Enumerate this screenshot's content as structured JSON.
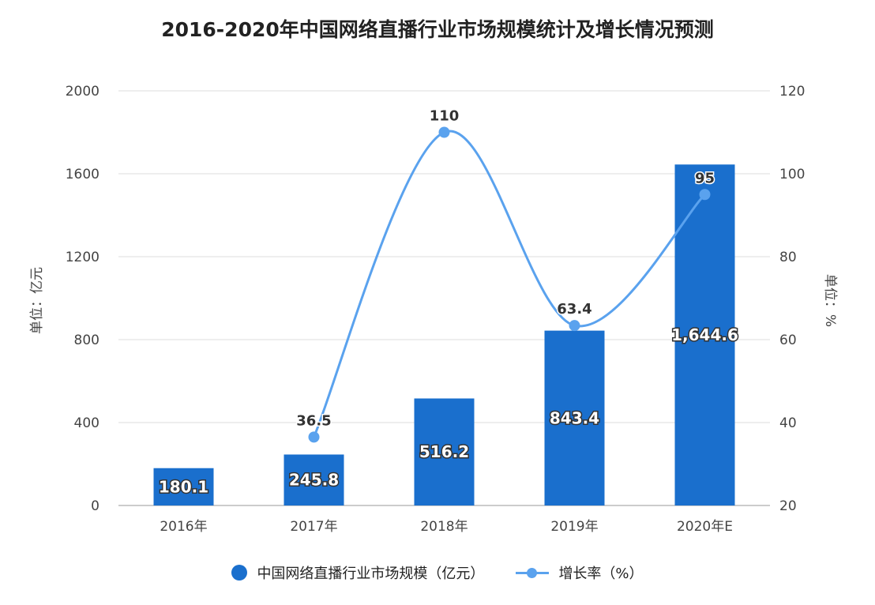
{
  "chart_data": {
    "type": "bar+line",
    "title": "2016-2020年中国网络直播行业市场规模统计及增长情况预测",
    "categories": [
      "2016年",
      "2017年",
      "2018年",
      "2019年",
      "2020年E"
    ],
    "series": [
      {
        "name": "中国网络直播行业市场规模（亿元）",
        "type": "bar",
        "axis": "left",
        "values": [
          180.1,
          245.8,
          516.2,
          843.4,
          1644.6
        ],
        "labels": [
          "180.1",
          "245.8",
          "516.2",
          "843.4",
          "1,644.6"
        ],
        "color": "#1a6fcd"
      },
      {
        "name": "增长率（%）",
        "type": "line",
        "smooth": true,
        "axis": "right",
        "values": [
          null,
          36.5,
          110,
          63.4,
          95
        ],
        "labels": [
          "",
          "36.5",
          "110",
          "63.4",
          "95"
        ],
        "color": "#5aa2ee"
      }
    ],
    "ylabel_left": "单位：亿元",
    "ylabel_right": "单位：%",
    "ylim_left": [
      0,
      2000
    ],
    "yticks_left": [
      "0",
      "400",
      "800",
      "1200",
      "1600",
      "2000"
    ],
    "ylim_right": [
      20,
      120
    ],
    "yticks_right": [
      "20",
      "40",
      "60",
      "80",
      "100",
      "120"
    ],
    "grid": true,
    "legend": "bottom"
  }
}
